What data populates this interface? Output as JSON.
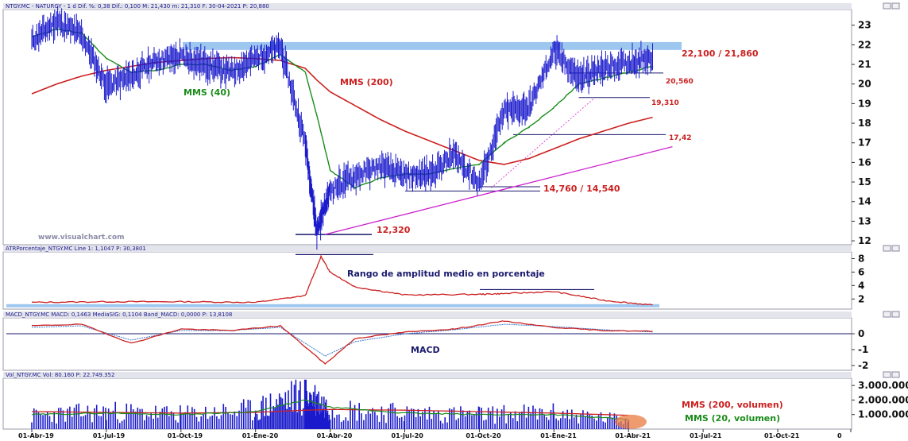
{
  "panels": {
    "price": {
      "header": "NTGY.MC - NATURGY - 1 d  Dif. %: 0,38  Dif.: 0,100  M: 21,430  m: 21,310  F: 30-04-2021  P: 20,880",
      "watermark": "www.visualchart.com",
      "yticks": [
        "23",
        "22",
        "21",
        "20",
        "19",
        "18",
        "17",
        "16",
        "15",
        "14",
        "13",
        "12"
      ]
    },
    "atr": {
      "header": "ATRPorcentaje_NTGY.MC  Line 1: 1,1047  P: 30,3801",
      "yticks": [
        "8",
        "6",
        "4",
        "2"
      ]
    },
    "macd": {
      "header": "MACD_NTGY.MC  MACD: 0,1463  MediaSIG: 0,1104  Band_MACD: 0,0000  P: 13,8108",
      "yticks": [
        "0",
        "-1",
        "-2"
      ]
    },
    "volume": {
      "header": "Vol_NTGY.MC  Vol: 80.160  P: 22.749.352",
      "yticks": [
        "3.000.000",
        "2.000.000",
        "1.000.000"
      ]
    }
  },
  "xaxis": {
    "labels": [
      "01-Abr-19",
      "01-Jul-19",
      "01-Oct-19",
      "01-Ene-20",
      "01-Abr-20",
      "01-Jul-20",
      "01-Oct-20",
      "01-Ene-21",
      "01-Abr-21",
      "01-Jul-21",
      "01-Oct-21",
      "0"
    ]
  },
  "annotations": {
    "resistance": "22,100 / 21,860",
    "mms200": "MMS (200)",
    "mms40": "MMS (40)",
    "level_20560": "20,560",
    "level_19310": "19,310",
    "level_1742": "17,42",
    "support": "14,760 / 14,540",
    "low": "12,320",
    "atr_label": "Rango de amplitud medio en porcentaje",
    "macd_label": "MACD",
    "vol_mms200": "MMS (200, volumen)",
    "vol_mms20": "MMS (20, volumen)"
  },
  "colors": {
    "price": "#1a1acc",
    "mms200": "#cc2020",
    "mms40": "#1a8c1a",
    "trend": "#cc22cc",
    "resistance_band": "#9ec7f0",
    "annotation_red": "#cc2020",
    "annotation_green": "#1a8c1a",
    "annotation_navy": "#1a1a6e"
  },
  "chart_data": [
    {
      "type": "line",
      "title": "NTGY.MC - NATURGY - 1 d",
      "x": [
        "01-Abr-19",
        "01-May-19",
        "01-Jun-19",
        "01-Jul-19",
        "01-Ago-19",
        "01-Sep-19",
        "01-Oct-19",
        "01-Nov-19",
        "01-Dic-19",
        "01-Ene-20",
        "01-Feb-20",
        "01-Mar-20",
        "15-Mar-20",
        "01-Abr-20",
        "01-May-20",
        "01-Jun-20",
        "01-Jul-20",
        "01-Ago-20",
        "01-Sep-20",
        "01-Oct-20",
        "01-Nov-20",
        "01-Dic-20",
        "01-Ene-21",
        "01-Feb-21",
        "01-Mar-21",
        "01-Abr-21",
        "30-Abr-21"
      ],
      "series": [
        {
          "name": "NTGY.MC",
          "values": [
            22.2,
            23.2,
            22.5,
            19.9,
            20.4,
            21.2,
            21.4,
            21.0,
            20.6,
            21.3,
            21.9,
            17.0,
            12.5,
            14.6,
            15.3,
            15.8,
            15.3,
            15.4,
            16.4,
            14.9,
            18.6,
            18.8,
            21.7,
            20.3,
            20.8,
            21.1,
            21.4
          ]
        },
        {
          "name": "MMS (40)",
          "values": [
            22.4,
            22.8,
            22.6,
            21.3,
            20.6,
            20.7,
            21.0,
            21.0,
            20.7,
            20.9,
            21.5,
            20.6,
            18.4,
            15.6,
            14.7,
            15.2,
            15.4,
            15.4,
            15.7,
            15.9,
            17.0,
            17.8,
            18.8,
            20.0,
            20.3,
            20.6,
            20.9
          ]
        },
        {
          "name": "MMS (200)",
          "values": [
            19.5,
            20.0,
            20.4,
            20.7,
            20.9,
            21.1,
            21.2,
            21.3,
            21.35,
            21.3,
            21.2,
            20.8,
            20.2,
            19.6,
            18.9,
            18.2,
            17.6,
            17.1,
            16.6,
            16.1,
            15.9,
            16.2,
            16.7,
            17.2,
            17.6,
            18.0,
            18.3
          ]
        }
      ],
      "ylim": [
        11.8,
        23.8
      ],
      "levels": [
        22.1,
        21.86,
        20.56,
        19.31,
        17.42,
        14.76,
        14.54,
        12.32
      ],
      "trendline": {
        "from": [
          "15-Mar-20",
          12.32
        ],
        "to": [
          "30-Abr-21",
          16.8
        ]
      }
    },
    {
      "type": "line",
      "title": "ATRPorcentaje_NTGY.MC",
      "x": [
        "01-Abr-19",
        "01-Jul-19",
        "01-Oct-19",
        "01-Ene-20",
        "01-Mar-20",
        "20-Mar-20",
        "01-Abr-20",
        "01-May-20",
        "01-Jul-20",
        "01-Oct-20",
        "01-Nov-20",
        "01-Ene-21",
        "01-Mar-21",
        "30-Abr-21"
      ],
      "series": [
        {
          "name": "Line 1",
          "values": [
            1.5,
            1.6,
            1.6,
            1.5,
            2.5,
            8.3,
            6.0,
            3.8,
            2.6,
            2.7,
            2.8,
            3.1,
            1.8,
            1.1
          ]
        }
      ],
      "ylim": [
        0.5,
        9
      ]
    },
    {
      "type": "line",
      "title": "MACD_NTGY.MC",
      "x": [
        "01-Abr-19",
        "01-Jun-19",
        "01-Ago-19",
        "01-Oct-19",
        "01-Dic-19",
        "01-Feb-20",
        "25-Mar-20",
        "01-May-20",
        "01-Jul-20",
        "01-Sep-20",
        "01-Nov-20",
        "01-Ene-21",
        "01-Mar-21",
        "30-Abr-21"
      ],
      "series": [
        {
          "name": "MACD",
          "values": [
            0.5,
            0.6,
            -0.6,
            0.3,
            0.2,
            0.5,
            -1.9,
            -0.3,
            0.1,
            0.3,
            0.8,
            0.4,
            0.2,
            0.15
          ]
        },
        {
          "name": "MediaSIG",
          "values": [
            0.4,
            0.5,
            -0.4,
            0.2,
            0.2,
            0.4,
            -1.4,
            -0.5,
            0.0,
            0.25,
            0.6,
            0.45,
            0.25,
            0.11
          ]
        }
      ],
      "ylim": [
        -2.3,
        1.0
      ]
    },
    {
      "type": "bar",
      "title": "Vol_NTGY.MC",
      "x": [
        "01-Abr-19",
        "01-Jul-19",
        "01-Oct-19",
        "01-Ene-20",
        "01-Mar-20",
        "01-Abr-20",
        "01-Jul-20",
        "01-Oct-20",
        "01-Ene-21",
        "01-Abr-21"
      ],
      "series": [
        {
          "name": "Vol",
          "values": [
            900000,
            1200000,
            1000000,
            1300000,
            2500000,
            1400000,
            1100000,
            1000000,
            1100000,
            600000
          ]
        },
        {
          "name": "MMS (200, volumen)",
          "values": [
            1200000,
            1150000,
            1100000,
            1150000,
            1300000,
            1350000,
            1300000,
            1200000,
            1100000,
            950000
          ]
        },
        {
          "name": "MMS (20, volumen)",
          "values": [
            1000000,
            1100000,
            1000000,
            1200000,
            2000000,
            1500000,
            1100000,
            1000000,
            1000000,
            650000
          ]
        }
      ],
      "ylim": [
        0,
        3500000
      ]
    }
  ]
}
